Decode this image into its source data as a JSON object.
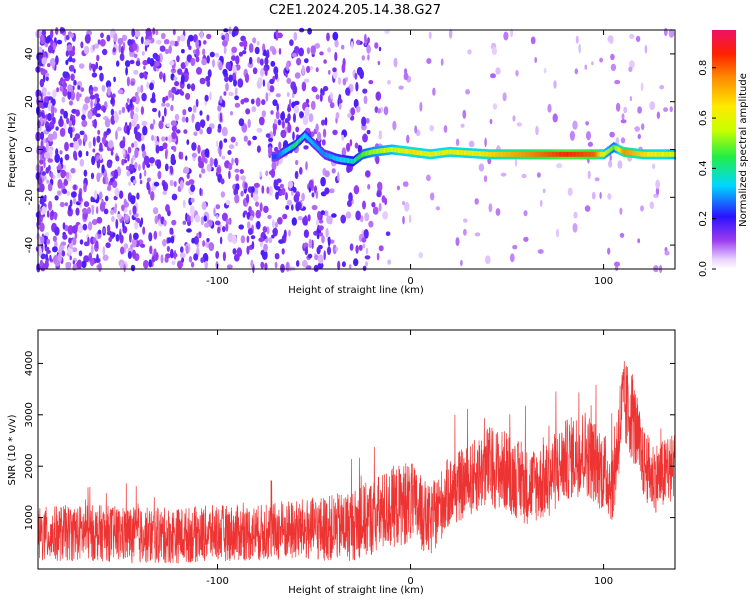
{
  "title": "C2E1.2024.205.14.38.G27",
  "colors": {
    "snr_line": "#ee3333",
    "noise_speckle": "#7a1ff0",
    "frame": "#000000"
  },
  "chart_data": [
    {
      "type": "heatmap",
      "xlabel": "Height of straight line (km)",
      "ylabel": "Frequency (Hz)",
      "xlim": [
        -193,
        137
      ],
      "ylim": [
        -50,
        50
      ],
      "x_ticks": [
        -100,
        0,
        100
      ],
      "x_tick_labels": [
        "-100",
        "0",
        "100"
      ],
      "y_ticks": [
        -40,
        -20,
        0,
        20,
        40
      ],
      "y_tick_labels": [
        "-40",
        "-20",
        "0",
        "20",
        "40"
      ],
      "grid": false,
      "ridge": {
        "description_values": "dominant frequency ridge near 0 Hz",
        "x": [
          -70,
          -60,
          -55,
          -45,
          -38,
          -30,
          -25,
          -20,
          -10,
          0,
          10,
          20,
          40,
          60,
          80,
          95,
          100,
          105,
          110,
          120,
          137
        ],
        "y": [
          -3,
          2,
          6,
          -2,
          -4,
          -5,
          -2,
          -1,
          0,
          -1,
          -2,
          -1,
          -2,
          -2,
          -2,
          -2,
          -2,
          1,
          -1,
          -2,
          -2
        ],
        "amplitude": [
          0.25,
          0.45,
          0.35,
          0.3,
          0.35,
          0.4,
          0.5,
          0.55,
          0.6,
          0.7,
          0.65,
          0.65,
          0.7,
          0.8,
          0.9,
          0.85,
          0.6,
          0.5,
          0.8,
          0.7,
          0.6
        ]
      },
      "colorbar": {
        "label": "Normalized spectral amplitude",
        "range": [
          0,
          0.95
        ],
        "ticks": [
          0.0,
          0.2,
          0.4,
          0.6,
          0.8
        ],
        "tick_labels": [
          "0.0",
          "0.2",
          "0.4",
          "0.6",
          "0.8"
        ],
        "colormap": "rainbow (white-violet-blue-cyan-green-yellow-orange-red)"
      }
    },
    {
      "type": "line",
      "xlabel": "Height of straight line (km)",
      "ylabel": "SNR (10 * v/v)",
      "xlim": [
        -193,
        137
      ],
      "ylim": [
        0,
        4650
      ],
      "x_ticks": [
        -100,
        0,
        100
      ],
      "x_tick_labels": [
        "-100",
        "0",
        "100"
      ],
      "y_ticks": [
        1000,
        2000,
        3000,
        4000
      ],
      "y_tick_labels": [
        "1000",
        "2000",
        "3000",
        "4000"
      ],
      "grid": false,
      "series": [
        {
          "color": "#ee3333",
          "x": [
            -193,
            -180,
            -160,
            -140,
            -120,
            -100,
            -80,
            -60,
            -40,
            -30,
            -20,
            -10,
            0,
            5,
            10,
            20,
            30,
            40,
            50,
            60,
            70,
            80,
            90,
            100,
            105,
            108,
            110,
            115,
            120,
            125,
            130,
            137
          ],
          "y": [
            650,
            700,
            700,
            650,
            650,
            700,
            700,
            750,
            800,
            850,
            1000,
            1200,
            1300,
            1100,
            900,
            1500,
            1700,
            2000,
            1900,
            1600,
            1700,
            2100,
            2300,
            1900,
            1600,
            2700,
            3200,
            3000,
            2100,
            1800,
            1800,
            2000
          ],
          "spread": [
            550,
            550,
            550,
            550,
            550,
            550,
            550,
            600,
            650,
            700,
            750,
            800,
            800,
            750,
            700,
            700,
            700,
            800,
            800,
            750,
            750,
            800,
            850,
            800,
            700,
            900,
            900,
            900,
            700,
            700,
            700,
            700
          ]
        }
      ]
    }
  ]
}
